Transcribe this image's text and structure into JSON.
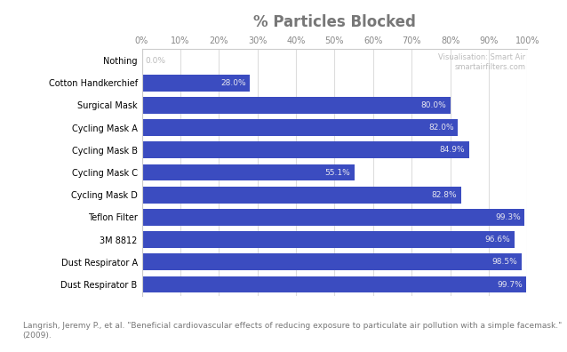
{
  "chart_data": {
    "type": "bar",
    "orientation": "horizontal",
    "title": "% Particles Blocked",
    "categories": [
      "Nothing",
      "Cotton Handkerchief",
      "Surgical Mask",
      "Cycling Mask A",
      "Cycling Mask B",
      "Cycling Mask C",
      "Cycling Mask D",
      "Teflon Filter",
      "3M 8812",
      "Dust Respirator A",
      "Dust Respirator B"
    ],
    "values": [
      0.0,
      28.0,
      80.0,
      82.0,
      84.9,
      55.1,
      82.8,
      99.3,
      96.6,
      98.5,
      99.7
    ],
    "value_labels": [
      "0.0%",
      "28.0%",
      "80.0%",
      "82.0%",
      "84.9%",
      "55.1%",
      "82.8%",
      "99.3%",
      "96.6%",
      "98.5%",
      "99.7%"
    ],
    "data_labels": true,
    "color": "#3b4cc0",
    "xlim": [
      0,
      100
    ],
    "xticks": [
      {
        "value": 0,
        "label": "0%"
      },
      {
        "value": 10,
        "label": "10%"
      },
      {
        "value": 20,
        "label": "20%"
      },
      {
        "value": 30,
        "label": "30%"
      },
      {
        "value": 40,
        "label": "40%"
      },
      {
        "value": 50,
        "label": "50%"
      },
      {
        "value": 60,
        "label": "60%"
      },
      {
        "value": 70,
        "label": "70%"
      },
      {
        "value": 80,
        "label": "80%"
      },
      {
        "value": 90,
        "label": "90%"
      },
      {
        "value": 100,
        "label": "100%"
      }
    ],
    "grid": true,
    "annotations": [
      "Visualisation: Smart Air",
      "smartairfilters.com",
      "Langrish, Jeremy P., et al. \"Beneficial cardiovascular effects of reducing exposure to particulate air pollution with a simple facemask.\" (2009)."
    ]
  }
}
